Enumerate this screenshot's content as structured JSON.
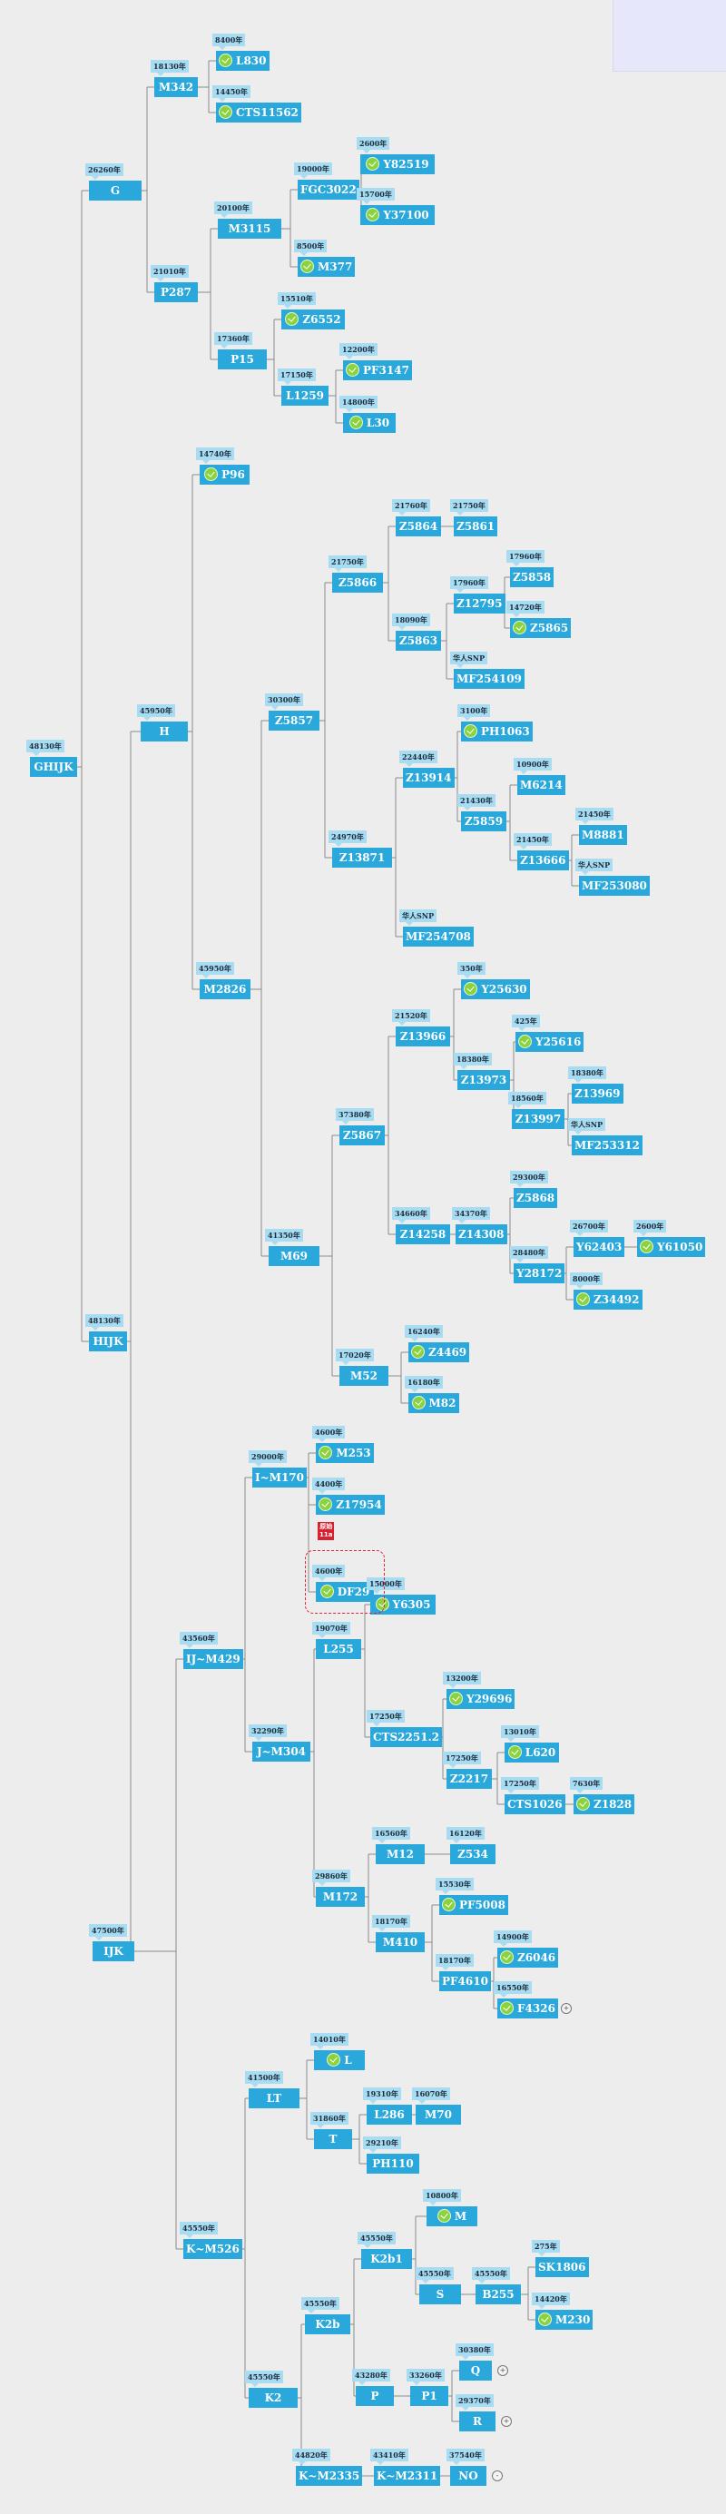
{
  "highlight": {
    "line1": "原始",
    "line2": "11a"
  },
  "nodes": [
    {
      "id": "ghijk",
      "label": "GHIJK",
      "age": "48130年"
    },
    {
      "id": "g",
      "label": "G",
      "age": "26260年"
    },
    {
      "id": "m342",
      "label": "M342",
      "age": "18130年"
    },
    {
      "id": "l830",
      "label": "L830",
      "age": "8400年",
      "badge": true
    },
    {
      "id": "cts11562",
      "label": "CTS11562",
      "age": "14450年",
      "badge": true
    },
    {
      "id": "p287",
      "label": "P287",
      "age": "21010年"
    },
    {
      "id": "m3115",
      "label": "M3115",
      "age": "20100年"
    },
    {
      "id": "fgc3022",
      "label": "FGC3022",
      "age": "19000年"
    },
    {
      "id": "y82519",
      "label": "Y82519",
      "age": "2600年",
      "badge": true
    },
    {
      "id": "y37100",
      "label": "Y37100",
      "age": "15700年",
      "badge": true
    },
    {
      "id": "m377",
      "label": "M377",
      "age": "8500年",
      "badge": true
    },
    {
      "id": "p15",
      "label": "P15",
      "age": "17360年"
    },
    {
      "id": "z6552",
      "label": "Z6552",
      "age": "15510年",
      "badge": true
    },
    {
      "id": "l1259",
      "label": "L1259",
      "age": "17150年"
    },
    {
      "id": "pf3147",
      "label": "PF3147",
      "age": "12200年",
      "badge": true
    },
    {
      "id": "l30",
      "label": "L30",
      "age": "14800年",
      "badge": true
    },
    {
      "id": "hijk",
      "label": "HIJK",
      "age": "48130年"
    },
    {
      "id": "h",
      "label": "H",
      "age": "45950年"
    },
    {
      "id": "p96",
      "label": "P96",
      "age": "14740年",
      "badge": true
    },
    {
      "id": "m2826",
      "label": "M2826",
      "age": "45950年"
    },
    {
      "id": "z5857",
      "label": "Z5857",
      "age": "30300年"
    },
    {
      "id": "z5866",
      "label": "Z5866",
      "age": "21750年"
    },
    {
      "id": "z5864",
      "label": "Z5864",
      "age": "21760年"
    },
    {
      "id": "z5861",
      "label": "Z5861",
      "age": "21750年"
    },
    {
      "id": "z5863",
      "label": "Z5863",
      "age": "18090年"
    },
    {
      "id": "z12795",
      "label": "Z12795",
      "age": "17960年"
    },
    {
      "id": "z5858",
      "label": "Z5858",
      "age": "17960年"
    },
    {
      "id": "z5865",
      "label": "Z5865",
      "age": "14720年",
      "badge": true
    },
    {
      "id": "mf254109",
      "label": "MF254109",
      "age": "华人SNP"
    },
    {
      "id": "z13871",
      "label": "Z13871",
      "age": "24970年"
    },
    {
      "id": "z13914",
      "label": "Z13914",
      "age": "22440年"
    },
    {
      "id": "ph1063",
      "label": "PH1063",
      "age": "3100年",
      "badge": true
    },
    {
      "id": "z5859",
      "label": "Z5859",
      "age": "21430年"
    },
    {
      "id": "m6214",
      "label": "M6214",
      "age": "10900年"
    },
    {
      "id": "z13666",
      "label": "Z13666",
      "age": "21450年"
    },
    {
      "id": "m8881",
      "label": "M8881",
      "age": "21450年"
    },
    {
      "id": "mf253080",
      "label": "MF253080",
      "age": "华人SNP"
    },
    {
      "id": "mf254708",
      "label": "MF254708",
      "age": "华人SNP"
    },
    {
      "id": "m69",
      "label": "M69",
      "age": "41350年"
    },
    {
      "id": "z5867",
      "label": "Z5867",
      "age": "37380年"
    },
    {
      "id": "z13966",
      "label": "Z13966",
      "age": "21520年"
    },
    {
      "id": "y25630",
      "label": "Y25630",
      "age": "350年",
      "badge": true
    },
    {
      "id": "z13973",
      "label": "Z13973",
      "age": "18380年"
    },
    {
      "id": "y25616",
      "label": "Y25616",
      "age": "425年",
      "badge": true
    },
    {
      "id": "z13997",
      "label": "Z13997",
      "age": "18560年"
    },
    {
      "id": "z13969",
      "label": "Z13969",
      "age": "18380年"
    },
    {
      "id": "mf253312",
      "label": "MF253312",
      "age": "华人SNP"
    },
    {
      "id": "z14258",
      "label": "Z14258",
      "age": "34660年"
    },
    {
      "id": "z14308",
      "label": "Z14308",
      "age": "34370年"
    },
    {
      "id": "z5868",
      "label": "Z5868",
      "age": "29300年"
    },
    {
      "id": "y28172",
      "label": "Y28172",
      "age": "28480年"
    },
    {
      "id": "y62403",
      "label": "Y62403",
      "age": "26700年"
    },
    {
      "id": "y61050",
      "label": "Y61050",
      "age": "2600年",
      "badge": true
    },
    {
      "id": "z34492",
      "label": "Z34492",
      "age": "8000年",
      "badge": true
    },
    {
      "id": "m52",
      "label": "M52",
      "age": "17020年"
    },
    {
      "id": "z4469",
      "label": "Z4469",
      "age": "16240年",
      "badge": true
    },
    {
      "id": "m82",
      "label": "M82",
      "age": "16180年",
      "badge": true
    },
    {
      "id": "ijk",
      "label": "IJK",
      "age": "47500年"
    },
    {
      "id": "ij_m429",
      "label": "IJ~M429",
      "age": "43560年"
    },
    {
      "id": "i_m170",
      "label": "I~M170",
      "age": "29000年"
    },
    {
      "id": "m253",
      "label": "M253",
      "age": "4600年",
      "badge": true
    },
    {
      "id": "z17954",
      "label": "Z17954",
      "age": "4400年",
      "badge": true
    },
    {
      "id": "df29",
      "label": "DF29",
      "age": "4600年",
      "badge": true
    },
    {
      "id": "j_m304",
      "label": "J~M304",
      "age": "32290年"
    },
    {
      "id": "l255",
      "label": "L255",
      "age": "19070年"
    },
    {
      "id": "y6305",
      "label": "Y6305",
      "age": "15000年",
      "badge": true
    },
    {
      "id": "cts2251_2",
      "label": "CTS2251.2",
      "age": "17250年"
    },
    {
      "id": "y29696",
      "label": "Y29696",
      "age": "13200年",
      "badge": true
    },
    {
      "id": "z2217",
      "label": "Z2217",
      "age": "17250年"
    },
    {
      "id": "l620",
      "label": "L620",
      "age": "13010年",
      "badge": true
    },
    {
      "id": "cts1026",
      "label": "CTS1026",
      "age": "17250年"
    },
    {
      "id": "z1828",
      "label": "Z1828",
      "age": "7630年",
      "badge": true
    },
    {
      "id": "m172",
      "label": "M172",
      "age": "29860年"
    },
    {
      "id": "m12",
      "label": "M12",
      "age": "16560年"
    },
    {
      "id": "z534",
      "label": "Z534",
      "age": "16120年"
    },
    {
      "id": "m410",
      "label": "M410",
      "age": "18170年"
    },
    {
      "id": "pf5008",
      "label": "PF5008",
      "age": "15530年",
      "badge": true
    },
    {
      "id": "pf4610",
      "label": "PF4610",
      "age": "18170年"
    },
    {
      "id": "z6046",
      "label": "Z6046",
      "age": "14900年",
      "badge": true
    },
    {
      "id": "f4326",
      "label": "F4326",
      "age": "16550年",
      "badge": true,
      "expand": "+"
    },
    {
      "id": "k_m526",
      "label": "K~M526",
      "age": "45550年"
    },
    {
      "id": "lt",
      "label": "LT",
      "age": "41500年"
    },
    {
      "id": "l",
      "label": "L",
      "age": "14010年",
      "badge": true
    },
    {
      "id": "t",
      "label": "T",
      "age": "31860年"
    },
    {
      "id": "l286",
      "label": "L286",
      "age": "19310年"
    },
    {
      "id": "m70",
      "label": "M70",
      "age": "16070年"
    },
    {
      "id": "ph110",
      "label": "PH110",
      "age": "29210年"
    },
    {
      "id": "k2",
      "label": "K2",
      "age": "45550年"
    },
    {
      "id": "k2b",
      "label": "K2b",
      "age": "45550年"
    },
    {
      "id": "k2b1",
      "label": "K2b1",
      "age": "45550年"
    },
    {
      "id": "m",
      "label": "M",
      "age": "10800年",
      "badge": true
    },
    {
      "id": "s",
      "label": "S",
      "age": "45550年"
    },
    {
      "id": "b255",
      "label": "B255",
      "age": "45550年"
    },
    {
      "id": "sk1806",
      "label": "SK1806",
      "age": "275年"
    },
    {
      "id": "m230",
      "label": "M230",
      "age": "14420年",
      "badge": true
    },
    {
      "id": "p",
      "label": "P",
      "age": "43280年"
    },
    {
      "id": "p1",
      "label": "P1",
      "age": "33260年"
    },
    {
      "id": "q",
      "label": "Q",
      "age": "30380年",
      "expand": "+"
    },
    {
      "id": "r",
      "label": "R",
      "age": "29370年",
      "expand": "+"
    },
    {
      "id": "k_m2335",
      "label": "K~M2335",
      "age": "44820年"
    },
    {
      "id": "k_m2311",
      "label": "K~M2311",
      "age": "43410年"
    },
    {
      "id": "no",
      "label": "NO",
      "age": "37540年",
      "expand": "-"
    }
  ]
}
